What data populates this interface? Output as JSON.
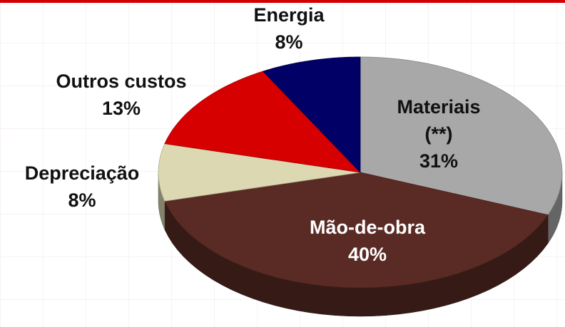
{
  "chart_data": {
    "type": "pie",
    "categories": [
      "Materiais (**)",
      "Mão-de-obra",
      "Depreciação",
      "Outros custos",
      "Energia"
    ],
    "values": [
      31,
      40,
      8,
      13,
      8
    ],
    "value_labels": [
      "31%",
      "40%",
      "8%",
      "13%",
      "8%"
    ],
    "colors": [
      "#a8a8a8",
      "#5a2b24",
      "#dcd9b2",
      "#d60000",
      "#000066"
    ]
  }
}
